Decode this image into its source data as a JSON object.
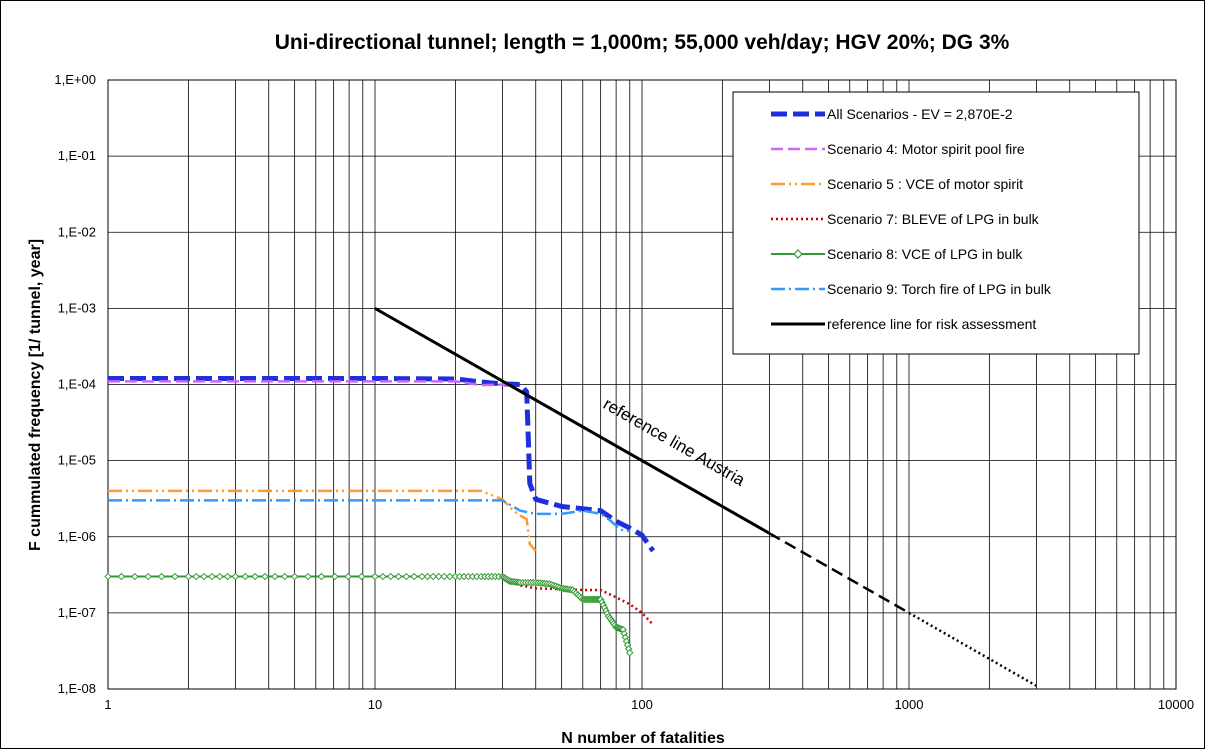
{
  "chart_data": {
    "type": "line",
    "title": "Uni-directional tunnel; length = 1,000m; 55,000 veh/day;  HGV 20%; DG 3%",
    "xlabel": "N  number of fatalities",
    "ylabel": "F  cummulated frequency  [1/ tunnel, year]",
    "x_scale": "log",
    "y_scale": "log",
    "xlim": [
      1,
      10000
    ],
    "ylim": [
      1e-08,
      1
    ],
    "grid": true,
    "x_ticks": [
      {
        "value": 1,
        "label": "1"
      },
      {
        "value": 10,
        "label": "10"
      },
      {
        "value": 100,
        "label": "100"
      },
      {
        "value": 1000,
        "label": "1000"
      },
      {
        "value": 10000,
        "label": "10000"
      }
    ],
    "y_ticks": [
      {
        "value": 1,
        "label": "1,E+00"
      },
      {
        "value": 0.1,
        "label": "1,E-01"
      },
      {
        "value": 0.01,
        "label": "1,E-02"
      },
      {
        "value": 0.001,
        "label": "1,E-03"
      },
      {
        "value": 0.0001,
        "label": "1,E-04"
      },
      {
        "value": 1e-05,
        "label": "1,E-05"
      },
      {
        "value": 1e-06,
        "label": "1,E-06"
      },
      {
        "value": 1e-07,
        "label": "1,E-07"
      },
      {
        "value": 1e-08,
        "label": "1,E-08"
      }
    ],
    "legend_position": "top-right",
    "series": [
      {
        "name": "All Scenarios - EV = 2,870E-2",
        "color": "#1f2fdc",
        "style": "bold-dash",
        "x": [
          1,
          10,
          20,
          27,
          30,
          35,
          37,
          38,
          40,
          50,
          70,
          80,
          90,
          100,
          110
        ],
        "y": [
          0.00012,
          0.00012,
          0.000118,
          0.000105,
          0.000102,
          0.0001,
          8e-05,
          5e-06,
          3.1e-06,
          2.5e-06,
          2.2e-06,
          1.6e-06,
          1.3e-06,
          1.05e-06,
          6.5e-07
        ]
      },
      {
        "name": "Scenario 4: Motor spirit pool fire",
        "color": "#cc66ff",
        "style": "dash",
        "x": [
          1,
          10,
          20,
          25,
          30,
          32
        ],
        "y": [
          0.00011,
          0.00011,
          0.00011,
          9.8e-05,
          0.0001,
          0.0001
        ]
      },
      {
        "name": "Scenario 5 : VCE of motor spirit",
        "color": "#ff9933",
        "style": "dash-dot-dot",
        "x": [
          1,
          10,
          25,
          30,
          33,
          35,
          37,
          38,
          40
        ],
        "y": [
          4e-06,
          4e-06,
          4e-06,
          3.1e-06,
          2.2e-06,
          1.9e-06,
          1.7e-06,
          8e-07,
          6.5e-07
        ]
      },
      {
        "name": "Scenario 7: BLEVE of LPG in bulk",
        "color": "#cc0000",
        "style": "dotted",
        "x": [
          30,
          35,
          40,
          50,
          60,
          65,
          70,
          80,
          90,
          100,
          110
        ],
        "y": [
          3e-07,
          2.3e-07,
          2.1e-07,
          2.05e-07,
          2e-07,
          2e-07,
          2e-07,
          1.6e-07,
          1.3e-07,
          1e-07,
          7e-08
        ]
      },
      {
        "name": "Scenario 8: VCE of LPG in bulk",
        "color": "#339933",
        "style": "diamond-line",
        "x": [
          1,
          2,
          3,
          5,
          10,
          15,
          20,
          25,
          30,
          32,
          35,
          40,
          45,
          50,
          55,
          60,
          65,
          70,
          75,
          80,
          85,
          90
        ],
        "y": [
          3e-07,
          3e-07,
          3e-07,
          3e-07,
          3e-07,
          3e-07,
          3e-07,
          3e-07,
          3e-07,
          2.6e-07,
          2.5e-07,
          2.5e-07,
          2.4e-07,
          2.1e-07,
          2e-07,
          1.5e-07,
          1.5e-07,
          1.5e-07,
          9e-08,
          6.5e-08,
          6e-08,
          3e-08
        ]
      },
      {
        "name": "Scenario 9: Torch fire of LPG in bulk",
        "color": "#3399ff",
        "style": "dash-dot",
        "x": [
          1,
          10,
          25,
          30,
          35,
          40,
          50,
          60,
          70,
          75,
          80,
          85,
          90
        ],
        "y": [
          3e-06,
          3e-06,
          3e-06,
          3e-06,
          2.2e-06,
          2e-06,
          2e-06,
          2.2e-06,
          2e-06,
          1.7e-06,
          1.4e-06,
          1.2e-06,
          1.2e-06
        ]
      },
      {
        "name": "reference line for risk assessment",
        "color": "#000000",
        "style": "solid-thick",
        "x": [
          10,
          300
        ],
        "y": [
          0.001,
          1.11e-06
        ]
      }
    ],
    "reference_extension": {
      "color": "#000000",
      "dashed": {
        "x": [
          300,
          1000
        ],
        "y": [
          1.11e-06,
          1e-07
        ]
      },
      "dotted": {
        "x": [
          1000,
          3000
        ],
        "y": [
          1e-07,
          1.1e-08
        ]
      }
    },
    "annotations": [
      {
        "text": "reference line Austria",
        "x": 100,
        "y": 3.5e-05
      }
    ]
  }
}
